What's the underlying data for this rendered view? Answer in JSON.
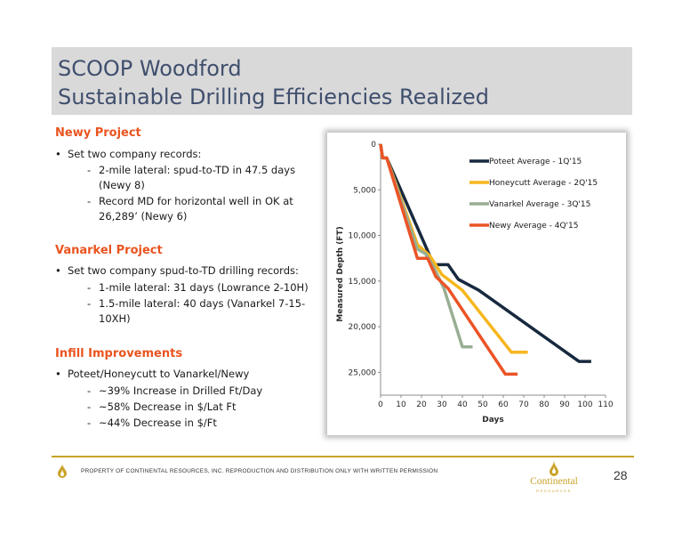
{
  "title": {
    "line1": "SCOOP Woodford",
    "line2": "Sustainable Drilling Efficiencies Realized"
  },
  "sections": [
    {
      "heading": "Newy Project",
      "bullet": "Set two company records:",
      "subs": [
        "2-mile lateral: spud-to-TD in 47.5 days (Newy 8)",
        "Record MD for horizontal well in OK at 26,289’ (Newy 6)"
      ]
    },
    {
      "heading": "Vanarkel Project",
      "bullet": "Set two company spud-to-TD drilling records:",
      "subs": [
        "1-mile lateral: 31 days (Lowrance 2-10H)",
        "1.5-mile lateral: 40 days (Vanarkel 7-15-10XH)"
      ]
    },
    {
      "heading": "Infill Improvements",
      "bullet": "Poteet/Honeycutt to Vanarkel/Newy",
      "subs": [
        "~39% Increase in Drilled Ft/Day",
        "~58% Decrease in $/Lat Ft",
        "~44% Decrease in $/Ft"
      ]
    }
  ],
  "chart_data": {
    "type": "line",
    "xlabel": "Days",
    "ylabel": "Measured Depth (FT)",
    "xlim": [
      0,
      110
    ],
    "ylim": [
      0,
      27500
    ],
    "y_reversed": true,
    "x_ticks": [
      "0",
      "10",
      "20",
      "30",
      "40",
      "50",
      "60",
      "70",
      "80",
      "90",
      "100",
      "110"
    ],
    "y_ticks": [
      "0",
      "5,000",
      "10,000",
      "15,000",
      "20,000",
      "25,000"
    ],
    "legend_position": "top-right",
    "series": [
      {
        "name": "Poteet Average - 1Q'15",
        "color": "#17293f",
        "x": [
          0,
          1,
          3,
          26,
          33,
          38,
          48,
          97,
          103
        ],
        "y": [
          0,
          1500,
          1500,
          13200,
          13200,
          14800,
          16000,
          23800,
          23800
        ]
      },
      {
        "name": "Honeycutt Average - 2Q'15",
        "color": "#f6b61e",
        "x": [
          0,
          1,
          3,
          18,
          24,
          30,
          40,
          64,
          72
        ],
        "y": [
          0,
          1500,
          1500,
          11000,
          12200,
          14300,
          16000,
          22800,
          22800
        ]
      },
      {
        "name": "Vanarkel Average - 3Q'15",
        "color": "#98ae93",
        "x": [
          0,
          1,
          3,
          18,
          22,
          26,
          31,
          40,
          45
        ],
        "y": [
          0,
          1500,
          1500,
          11500,
          12000,
          13500,
          15800,
          22200,
          22200
        ]
      },
      {
        "name": "Newy Average - 4Q'15",
        "color": "#ea5427",
        "x": [
          0,
          1,
          3,
          18,
          23,
          27,
          33,
          61,
          67
        ],
        "y": [
          0,
          1500,
          1500,
          12500,
          12500,
          14500,
          15800,
          25200,
          25200
        ]
      }
    ]
  },
  "footer": {
    "text": "PROPERTY OF CONTINENTAL RESOURCES, INC. REPRODUCTION AND DISTRIBUTION ONLY WITH WRITTEN PERMISSION",
    "logo_word": "Continental",
    "logo_sub": "RESOURCES",
    "page_number": "28"
  },
  "colors": {
    "accent_orange": "#e9541f",
    "title_text": "#404f6e",
    "title_band": "#d9d9d9",
    "gold": "#c9a227"
  }
}
